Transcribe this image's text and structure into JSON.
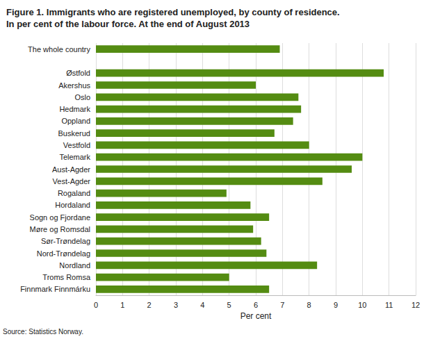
{
  "chart_data": {
    "type": "bar",
    "orientation": "horizontal",
    "title": "Figure 1. Immigrants who are registered unemployed, by county of residence.\nIn per cent of the labour force. At the end of August 2013",
    "xlabel": "Per cent",
    "source": "Source: Statistics Norway.",
    "categories": [
      "The whole country",
      null,
      "Østfold",
      "Akershus",
      "Oslo",
      "Hedmark",
      "Oppland",
      "Buskerud",
      "Vestfold",
      "Telemark",
      "Aust-Agder",
      "Vest-Agder",
      "Rogaland",
      "Hordaland",
      "Sogn og Fjordane",
      "Møre og Romsdal",
      "Sør-Trøndelag",
      "Nord-Trøndelag",
      "Nordland",
      "Troms Romsa",
      "Finnmark Finnmárku"
    ],
    "values": [
      6.9,
      null,
      10.8,
      6.0,
      7.6,
      7.7,
      7.4,
      6.7,
      8.0,
      10.0,
      9.6,
      8.5,
      4.9,
      5.8,
      6.5,
      5.9,
      6.2,
      6.4,
      8.3,
      5.0,
      6.5
    ],
    "color": "#548c12",
    "xlim": [
      0,
      12
    ],
    "xticks": [
      0,
      1,
      2,
      3,
      4,
      5,
      6,
      7,
      8,
      9,
      10,
      11,
      12
    ],
    "grid": true
  }
}
